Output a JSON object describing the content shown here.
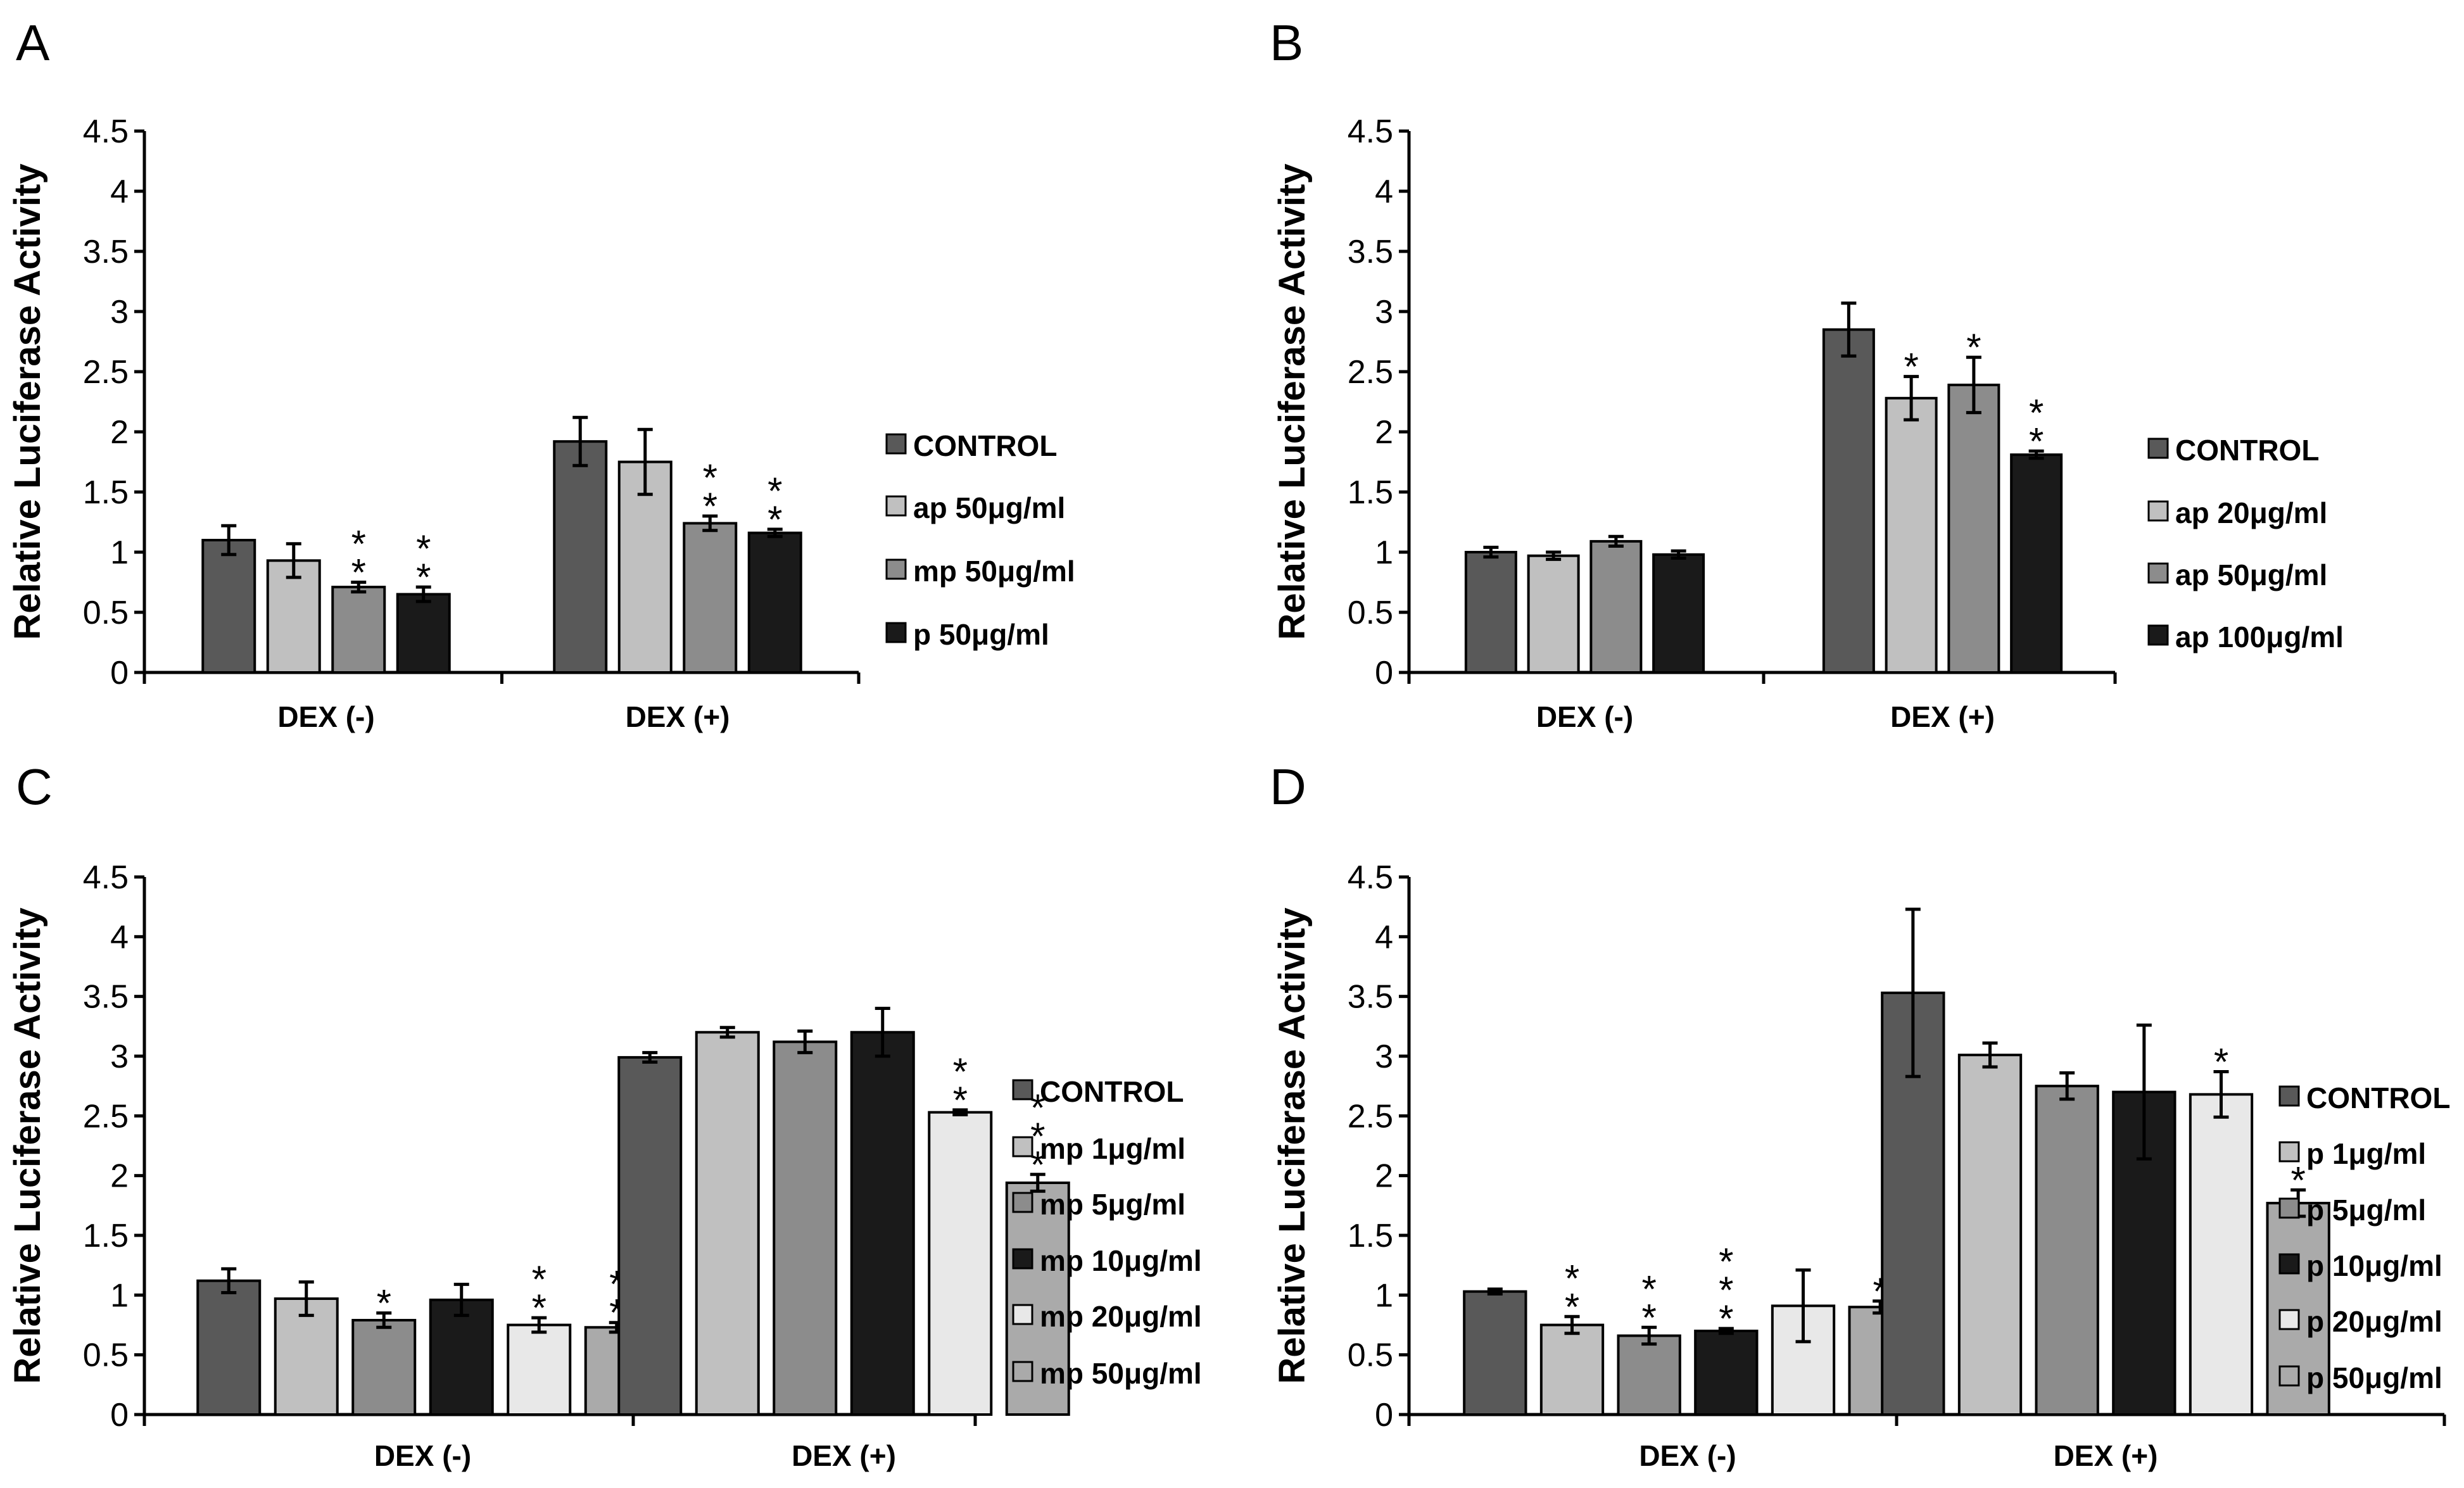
{
  "ylabel": "Relative Luciferase Activity",
  "ylim": [
    0,
    4.5
  ],
  "yticks": [
    "0",
    "0.5",
    "1",
    "1.5",
    "2",
    "2.5",
    "3",
    "3.5",
    "4",
    "4.5"
  ],
  "categories": [
    "DEX (-)",
    "DEX (+)"
  ],
  "chart_data": [
    {
      "type": "bar",
      "panel": "A",
      "ylabel": "Relative Luciferase Activity",
      "ylim": [
        0,
        4.5
      ],
      "categories": [
        "DEX (-)",
        "DEX (+)"
      ],
      "series": [
        {
          "name": "CONTROL",
          "color": "#595959",
          "values": [
            1.1,
            1.92
          ],
          "errors": [
            0.12,
            0.2
          ],
          "sig": [
            "",
            ""
          ]
        },
        {
          "name": "ap 50μg/ml",
          "color": "#c0c0c0",
          "values": [
            0.93,
            1.75
          ],
          "errors": [
            0.14,
            0.27
          ],
          "sig": [
            "",
            ""
          ]
        },
        {
          "name": "mp 50μg/ml",
          "color": "#8c8c8c",
          "values": [
            0.71,
            1.24
          ],
          "errors": [
            0.04,
            0.06
          ],
          "sig": [
            "**",
            "**"
          ]
        },
        {
          "name": "p 50μg/ml",
          "color": "#1a1a1a",
          "values": [
            0.65,
            1.16
          ],
          "errors": [
            0.06,
            0.03
          ],
          "sig": [
            "**",
            "**"
          ]
        }
      ]
    },
    {
      "type": "bar",
      "panel": "B",
      "ylabel": "Relative Luciferase Activity",
      "ylim": [
        0,
        4.5
      ],
      "categories": [
        "DEX (-)",
        "DEX (+)"
      ],
      "series": [
        {
          "name": "CONTROL",
          "color": "#595959",
          "values": [
            1.0,
            2.85
          ],
          "errors": [
            0.04,
            0.22
          ],
          "sig": [
            "",
            ""
          ]
        },
        {
          "name": "ap 20μg/ml",
          "color": "#c0c0c0",
          "values": [
            0.97,
            2.28
          ],
          "errors": [
            0.03,
            0.18
          ],
          "sig": [
            "",
            "*"
          ]
        },
        {
          "name": "ap 50μg/ml",
          "color": "#8c8c8c",
          "values": [
            1.09,
            2.39
          ],
          "errors": [
            0.04,
            0.23
          ],
          "sig": [
            "",
            "*"
          ]
        },
        {
          "name": "ap 100μg/ml",
          "color": "#1a1a1a",
          "values": [
            0.98,
            1.81
          ],
          "errors": [
            0.03,
            0.03
          ],
          "sig": [
            "",
            "**"
          ]
        }
      ]
    },
    {
      "type": "bar",
      "panel": "C",
      "ylabel": "Relative Luciferase Activity",
      "ylim": [
        0,
        4.5
      ],
      "categories": [
        "DEX (-)",
        "DEX (+)"
      ],
      "series": [
        {
          "name": "CONTROL",
          "color": "#595959",
          "values": [
            1.12,
            2.99
          ],
          "errors": [
            0.1,
            0.04
          ],
          "sig": [
            "",
            ""
          ]
        },
        {
          "name": "mp 1μg/ml",
          "color": "#c0c0c0",
          "values": [
            0.97,
            3.2
          ],
          "errors": [
            0.14,
            0.04
          ],
          "sig": [
            "",
            ""
          ]
        },
        {
          "name": "mp 5μg/ml",
          "color": "#8c8c8c",
          "values": [
            0.79,
            3.12
          ],
          "errors": [
            0.06,
            0.09
          ],
          "sig": [
            "*",
            ""
          ]
        },
        {
          "name": "mp 10μg/ml",
          "color": "#1a1a1a",
          "values": [
            0.96,
            3.2
          ],
          "errors": [
            0.13,
            0.2
          ],
          "sig": [
            "",
            ""
          ]
        },
        {
          "name": "mp 20μg/ml",
          "color": "#e8e8e8",
          "values": [
            0.75,
            2.53
          ],
          "errors": [
            0.06,
            0.02
          ],
          "sig": [
            "**",
            "**"
          ]
        },
        {
          "name": "mp 50μg/ml",
          "color": "#aaaaaa",
          "values": [
            0.73,
            1.94
          ],
          "errors": [
            0.04,
            0.07
          ],
          "sig": [
            "**",
            "***"
          ]
        }
      ]
    },
    {
      "type": "bar",
      "panel": "D",
      "ylabel": "Relative Luciferase Activity",
      "ylim": [
        0,
        4.5
      ],
      "categories": [
        "DEX (-)",
        "DEX (+)"
      ],
      "series": [
        {
          "name": "CONTROL",
          "color": "#595959",
          "values": [
            1.03,
            3.53
          ],
          "errors": [
            0.02,
            0.7
          ],
          "sig": [
            "",
            ""
          ]
        },
        {
          "name": "p 1μg/ml",
          "color": "#c0c0c0",
          "values": [
            0.75,
            3.01
          ],
          "errors": [
            0.07,
            0.1
          ],
          "sig": [
            "**",
            ""
          ]
        },
        {
          "name": "p 5μg/ml",
          "color": "#8c8c8c",
          "values": [
            0.66,
            2.75
          ],
          "errors": [
            0.07,
            0.11
          ],
          "sig": [
            "**",
            ""
          ]
        },
        {
          "name": "p 10μg/ml",
          "color": "#1a1a1a",
          "values": [
            0.7,
            2.7
          ],
          "errors": [
            0.02,
            0.56
          ],
          "sig": [
            "***",
            ""
          ]
        },
        {
          "name": "p 20μg/ml",
          "color": "#e8e8e8",
          "values": [
            0.91,
            2.68
          ],
          "errors": [
            0.3,
            0.19
          ],
          "sig": [
            "",
            "*"
          ]
        },
        {
          "name": "p 50μg/ml",
          "color": "#aaaaaa",
          "values": [
            0.9,
            1.77
          ],
          "errors": [
            0.05,
            0.11
          ],
          "sig": [
            "*",
            "*"
          ]
        }
      ]
    }
  ]
}
